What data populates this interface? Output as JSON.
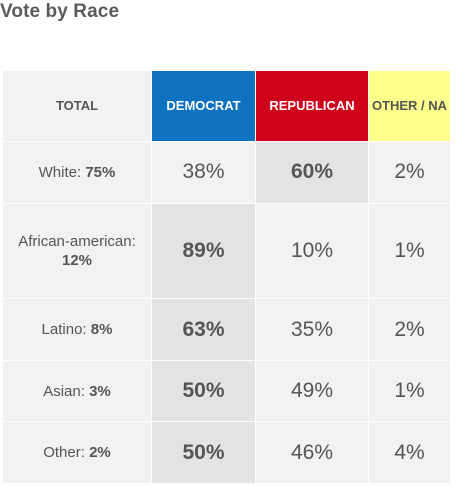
{
  "chart_data": {
    "type": "table",
    "title": "Vote by Race",
    "columns": [
      "TOTAL",
      "DEMOCRAT",
      "REPUBLICAN",
      "OTHER / NA"
    ],
    "column_colors": {
      "democrat": "#0d72c0",
      "republican": "#d0021b",
      "other": "#ffff8c"
    },
    "rows": [
      {
        "group": "White:",
        "share": "75%",
        "democrat": "38%",
        "republican": "60%",
        "other": "2%",
        "leader": "republican"
      },
      {
        "group": "African-american:",
        "share": "12%",
        "democrat": "89%",
        "republican": "10%",
        "other": "1%",
        "leader": "democrat"
      },
      {
        "group": "Latino:",
        "share": "8%",
        "democrat": "63%",
        "republican": "35%",
        "other": "2%",
        "leader": "democrat"
      },
      {
        "group": "Asian:",
        "share": "3%",
        "democrat": "50%",
        "republican": "49%",
        "other": "1%",
        "leader": "democrat"
      },
      {
        "group": "Other:",
        "share": "2%",
        "democrat": "50%",
        "republican": "46%",
        "other": "4%",
        "leader": "democrat"
      }
    ]
  }
}
